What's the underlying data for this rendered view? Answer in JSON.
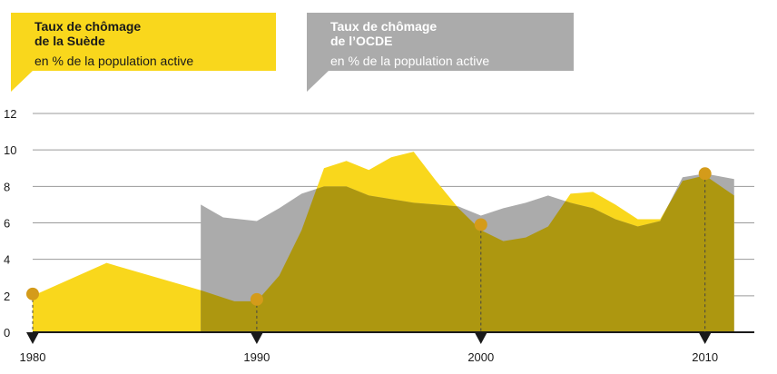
{
  "legend": {
    "sweden": {
      "title_line1": "Taux de chômage",
      "title_line2": "de la Suède",
      "subtitle": "en % de la population active",
      "color": "#f9d71c"
    },
    "oecd": {
      "title_line1": "Taux de chômage",
      "title_line2": "de l’OCDE",
      "subtitle": "en % de la population active",
      "color": "#ababab"
    }
  },
  "colors": {
    "sweden": "#f9d71c",
    "oecd": "#ababab",
    "overlap": "#ad9710",
    "marker": "#d49b1a",
    "axis": "#1a1a1a",
    "grid": "#9a9a9a"
  },
  "chart_data": {
    "type": "area",
    "xlim": [
      1980,
      2012.2
    ],
    "ylim": [
      0,
      12
    ],
    "yticks": [
      0,
      2,
      4,
      6,
      8,
      10,
      12
    ],
    "xticks": [
      1980,
      1990,
      2000,
      2010
    ],
    "grid": true,
    "series": [
      {
        "name": "Taux de chômage de la Suède",
        "points": [
          [
            1980,
            2.0
          ],
          [
            1983.3,
            3.8
          ],
          [
            1987.5,
            2.3
          ],
          [
            1989,
            1.7
          ],
          [
            1990,
            1.7
          ],
          [
            1991,
            3.1
          ],
          [
            1992,
            5.6
          ],
          [
            1993,
            9.0
          ],
          [
            1994,
            9.4
          ],
          [
            1995,
            8.9
          ],
          [
            1996,
            9.6
          ],
          [
            1997,
            9.9
          ],
          [
            1998,
            8.3
          ],
          [
            1999,
            6.8
          ],
          [
            2000,
            5.6
          ],
          [
            2001,
            5.0
          ],
          [
            2002,
            5.2
          ],
          [
            2003,
            5.8
          ],
          [
            2004,
            7.6
          ],
          [
            2005,
            7.7
          ],
          [
            2006,
            7.0
          ],
          [
            2007,
            6.2
          ],
          [
            2008,
            6.2
          ],
          [
            2009,
            8.3
          ],
          [
            2010,
            8.6
          ],
          [
            2011.3,
            7.5
          ]
        ]
      },
      {
        "name": "Taux de chômage de l’OCDE",
        "points": [
          [
            1987.5,
            7.0
          ],
          [
            1988.5,
            6.3
          ],
          [
            1990,
            6.1
          ],
          [
            1991,
            6.8
          ],
          [
            1992,
            7.6
          ],
          [
            1993,
            8.0
          ],
          [
            1994,
            8.0
          ],
          [
            1995,
            7.5
          ],
          [
            1996,
            7.3
          ],
          [
            1997,
            7.1
          ],
          [
            1998,
            7.0
          ],
          [
            1999,
            6.9
          ],
          [
            2000,
            6.4
          ],
          [
            2001,
            6.8
          ],
          [
            2002,
            7.1
          ],
          [
            2003,
            7.5
          ],
          [
            2004,
            7.1
          ],
          [
            2005,
            6.8
          ],
          [
            2006,
            6.2
          ],
          [
            2007,
            5.8
          ],
          [
            2008,
            6.1
          ],
          [
            2009,
            8.5
          ],
          [
            2010,
            8.7
          ],
          [
            2011.3,
            8.4
          ]
        ]
      }
    ],
    "markers": [
      [
        1980,
        2.1
      ],
      [
        1990,
        1.8
      ],
      [
        2000,
        5.9
      ],
      [
        2010,
        8.7
      ]
    ]
  }
}
